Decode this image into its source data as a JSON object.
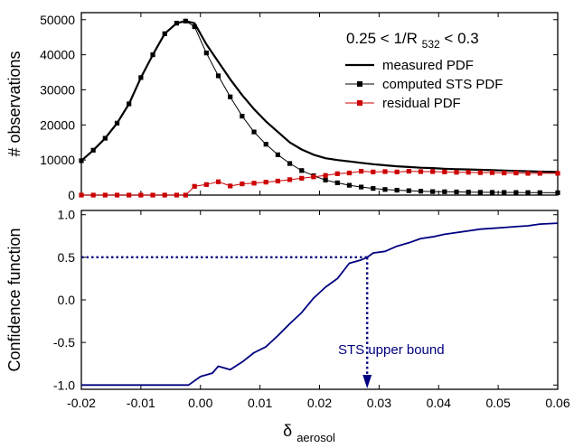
{
  "chart_data": [
    {
      "type": "line",
      "panel": "top",
      "title": "",
      "annotation": {
        "prefix": "0.25 < 1/R",
        "subscript": "532",
        "suffix": " < 0.3"
      },
      "ylabel": "# observations",
      "xlim": [
        -0.02,
        0.06
      ],
      "ylim": [
        0,
        52000
      ],
      "x_ticks": [
        -0.02,
        -0.01,
        0.0,
        0.01,
        0.02,
        0.03,
        0.04,
        0.05,
        0.06
      ],
      "y_ticks": [
        0,
        10000,
        20000,
        30000,
        40000,
        50000
      ],
      "y_tick_labels": [
        "0",
        "10000",
        "20000",
        "30000",
        "40000",
        "50000"
      ],
      "legend_position": "top-right",
      "legend": [
        "measured PDF",
        "computed STS PDF",
        "residual PDF"
      ],
      "series": [
        {
          "name": "measured PDF",
          "color": "#000000",
          "marker": "none",
          "x": [
            -0.02,
            -0.018,
            -0.016,
            -0.014,
            -0.012,
            -0.01,
            -0.008,
            -0.006,
            -0.004,
            -0.0025,
            -0.001,
            0.001,
            0.003,
            0.005,
            0.007,
            0.009,
            0.011,
            0.013,
            0.015,
            0.017,
            0.019,
            0.021,
            0.023,
            0.025,
            0.027,
            0.029,
            0.031,
            0.033,
            0.035,
            0.037,
            0.039,
            0.041,
            0.043,
            0.045,
            0.047,
            0.049,
            0.051,
            0.053,
            0.055,
            0.057,
            0.06
          ],
          "values": [
            9800,
            12800,
            16200,
            20500,
            26000,
            33500,
            40000,
            46000,
            49000,
            49600,
            49000,
            43000,
            38000,
            33000,
            28500,
            24500,
            21000,
            18000,
            15000,
            13000,
            11500,
            10500,
            10000,
            9600,
            9200,
            8800,
            8500,
            8200,
            8000,
            7800,
            7700,
            7500,
            7400,
            7300,
            7200,
            7100,
            7000,
            6900,
            6800,
            6700,
            6600
          ]
        },
        {
          "name": "computed STS PDF",
          "color": "#000000",
          "marker": "square",
          "x": [
            -0.02,
            -0.018,
            -0.016,
            -0.014,
            -0.012,
            -0.01,
            -0.008,
            -0.006,
            -0.004,
            -0.0025,
            -0.001,
            0.001,
            0.003,
            0.005,
            0.007,
            0.009,
            0.011,
            0.013,
            0.015,
            0.017,
            0.019,
            0.021,
            0.023,
            0.025,
            0.027,
            0.029,
            0.031,
            0.033,
            0.035,
            0.037,
            0.039,
            0.041,
            0.043,
            0.045,
            0.047,
            0.049,
            0.051,
            0.053,
            0.055,
            0.057,
            0.06
          ],
          "values": [
            9800,
            12800,
            16200,
            20500,
            26000,
            33500,
            40000,
            46000,
            49000,
            49600,
            48000,
            40500,
            34000,
            28000,
            22500,
            18000,
            14500,
            11500,
            9000,
            7000,
            5500,
            4300,
            3500,
            2800,
            2300,
            1900,
            1600,
            1400,
            1250,
            1100,
            1000,
            950,
            900,
            850,
            800,
            780,
            760,
            740,
            720,
            700,
            680
          ]
        },
        {
          "name": "residual PDF",
          "color": "#cc0000",
          "marker": "square",
          "x": [
            -0.02,
            -0.018,
            -0.016,
            -0.014,
            -0.012,
            -0.01,
            -0.008,
            -0.006,
            -0.004,
            -0.0025,
            -0.001,
            0.001,
            0.003,
            0.005,
            0.007,
            0.009,
            0.011,
            0.013,
            0.015,
            0.017,
            0.019,
            0.021,
            0.023,
            0.025,
            0.027,
            0.029,
            0.031,
            0.033,
            0.035,
            0.037,
            0.039,
            0.041,
            0.043,
            0.045,
            0.047,
            0.049,
            0.051,
            0.053,
            0.055,
            0.057,
            0.06
          ],
          "values": [
            0,
            0,
            0,
            0,
            0,
            0,
            0,
            0,
            0,
            0,
            2500,
            3000,
            3800,
            2600,
            3200,
            3400,
            3700,
            4000,
            4400,
            4800,
            5200,
            5600,
            6100,
            6300,
            6800,
            6600,
            6700,
            6600,
            6800,
            6700,
            6700,
            6600,
            6500,
            6500,
            6400,
            6400,
            6300,
            6300,
            6200,
            6200,
            6200
          ]
        }
      ]
    },
    {
      "type": "line",
      "panel": "bottom",
      "title": "",
      "ylabel": "Confidence function",
      "xlabel_main": "δ",
      "xlabel_sub": "aerosol",
      "xlim": [
        -0.02,
        0.06
      ],
      "ylim": [
        -1.05,
        1.05
      ],
      "x_ticks": [
        -0.02,
        -0.01,
        0.0,
        0.01,
        0.02,
        0.03,
        0.04,
        0.05,
        0.06
      ],
      "x_tick_labels": [
        "-0.02",
        "-0.01",
        "0.00",
        "0.01",
        "0.02",
        "0.03",
        "0.04",
        "0.05",
        "0.06"
      ],
      "y_ticks": [
        -1.0,
        -0.5,
        0.0,
        0.5,
        1.0
      ],
      "y_tick_labels": [
        "-1.0",
        "-0.5",
        "0.0",
        "0.5",
        "1.0"
      ],
      "series": [
        {
          "color": "#000080",
          "marker": "none",
          "x": [
            -0.02,
            -0.015,
            -0.01,
            -0.005,
            -0.002,
            0.0,
            0.002,
            0.003,
            0.005,
            0.007,
            0.009,
            0.011,
            0.013,
            0.015,
            0.017,
            0.019,
            0.021,
            0.023,
            0.025,
            0.027,
            0.028,
            0.029,
            0.031,
            0.033,
            0.035,
            0.037,
            0.039,
            0.041,
            0.043,
            0.045,
            0.047,
            0.049,
            0.051,
            0.053,
            0.055,
            0.057,
            0.06
          ],
          "values": [
            -1.0,
            -1.0,
            -1.0,
            -1.0,
            -1.0,
            -0.9,
            -0.86,
            -0.78,
            -0.82,
            -0.73,
            -0.62,
            -0.55,
            -0.42,
            -0.28,
            -0.15,
            0.02,
            0.15,
            0.25,
            0.43,
            0.47,
            0.5,
            0.55,
            0.57,
            0.63,
            0.67,
            0.72,
            0.74,
            0.77,
            0.79,
            0.81,
            0.83,
            0.84,
            0.85,
            0.86,
            0.87,
            0.89,
            0.9
          ]
        }
      ],
      "threshold": {
        "y": 0.5,
        "x": 0.028,
        "style": "dotted",
        "color": "#000080"
      },
      "annotation_text": "STS upper bound"
    }
  ]
}
